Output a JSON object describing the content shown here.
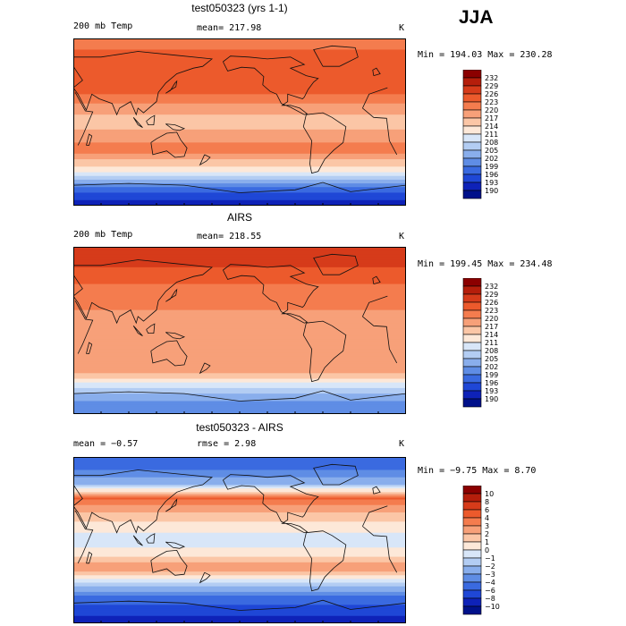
{
  "season": "JJA",
  "panels": [
    {
      "title": "test050323 (yrs 1-1)",
      "left_label": "200 mb Temp",
      "mid_label": "mean= 217.98",
      "unit": "K",
      "minmax": "Min = 194.03 Max = 230.28"
    },
    {
      "title": "AIRS",
      "left_label": "200 mb Temp",
      "mid_label": "mean= 218.55",
      "unit": "K",
      "minmax": "Min = 199.45 Max = 234.48"
    },
    {
      "title": "test050323 - AIRS",
      "left_label": "mean =  −0.57",
      "mid_label": "rmse =   2.98",
      "unit": "K",
      "minmax": "Min = −9.75 Max =   8.70"
    }
  ],
  "chart_data": [
    {
      "type": "heatmap",
      "title": "test050323 (yrs 1-1)",
      "variable": "200 mb Temp",
      "units": "K",
      "mean": 217.98,
      "min": 194.03,
      "max": 230.28,
      "levels": [
        232,
        229,
        226,
        223,
        220,
        217,
        214,
        211,
        208,
        205,
        202,
        199,
        196,
        193,
        190
      ],
      "colors": [
        "#8b0000",
        "#b51e0b",
        "#d63b1a",
        "#ec5a2c",
        "#f47c4e",
        "#f7a079",
        "#fbc6a6",
        "#fde8d8",
        "#d8e6f8",
        "#b3cdf3",
        "#89aeec",
        "#5f8de5",
        "#3a6ae0",
        "#1f47d6",
        "#0e22b8",
        "#00118a"
      ],
      "lat_profile": [
        {
          "lat": 90,
          "value": 220
        },
        {
          "lat": 75,
          "value": 224
        },
        {
          "lat": 60,
          "value": 226
        },
        {
          "lat": 45,
          "value": 225
        },
        {
          "lat": 30,
          "value": 223
        },
        {
          "lat": 15,
          "value": 218
        },
        {
          "lat": 0,
          "value": 216
        },
        {
          "lat": -15,
          "value": 218
        },
        {
          "lat": -30,
          "value": 222
        },
        {
          "lat": -45,
          "value": 215
        },
        {
          "lat": -55,
          "value": 210
        },
        {
          "lat": -65,
          "value": 202
        },
        {
          "lat": -75,
          "value": 196
        },
        {
          "lat": -90,
          "value": 191
        }
      ]
    },
    {
      "type": "heatmap",
      "title": "AIRS",
      "variable": "200 mb Temp",
      "units": "K",
      "mean": 218.55,
      "min": 199.45,
      "max": 234.48,
      "levels": [
        232,
        229,
        226,
        223,
        220,
        217,
        214,
        211,
        208,
        205,
        202,
        199,
        196,
        193,
        190
      ],
      "colors": [
        "#8b0000",
        "#b51e0b",
        "#d63b1a",
        "#ec5a2c",
        "#f47c4e",
        "#f7a079",
        "#fbc6a6",
        "#fde8d8",
        "#d8e6f8",
        "#b3cdf3",
        "#89aeec",
        "#5f8de5",
        "#3a6ae0",
        "#1f47d6",
        "#0e22b8",
        "#00118a"
      ],
      "lat_profile": [
        {
          "lat": 90,
          "value": 228
        },
        {
          "lat": 75,
          "value": 227
        },
        {
          "lat": 60,
          "value": 225
        },
        {
          "lat": 45,
          "value": 222
        },
        {
          "lat": 30,
          "value": 221
        },
        {
          "lat": 15,
          "value": 219
        },
        {
          "lat": 0,
          "value": 218
        },
        {
          "lat": -15,
          "value": 219
        },
        {
          "lat": -30,
          "value": 220
        },
        {
          "lat": -45,
          "value": 217
        },
        {
          "lat": -55,
          "value": 212
        },
        {
          "lat": -65,
          "value": 206
        },
        {
          "lat": -75,
          "value": 202
        },
        {
          "lat": -90,
          "value": 200
        }
      ]
    },
    {
      "type": "heatmap",
      "title": "test050323 - AIRS",
      "units": "K",
      "mean": -0.57,
      "rmse": 2.98,
      "min": -9.75,
      "max": 8.7,
      "levels": [
        10,
        8,
        6,
        4,
        3,
        2,
        1,
        0,
        -1,
        -2,
        -3,
        -4,
        -6,
        -8,
        -10
      ],
      "colors": [
        "#8b0000",
        "#b51e0b",
        "#d63b1a",
        "#ec5a2c",
        "#f47c4e",
        "#f7a079",
        "#fbc6a6",
        "#fde8d8",
        "#d8e6f8",
        "#b3cdf3",
        "#89aeec",
        "#5f8de5",
        "#3a6ae0",
        "#1f47d6",
        "#0e22b8",
        "#00118a"
      ],
      "lat_profile": [
        {
          "lat": 90,
          "value": -5
        },
        {
          "lat": 75,
          "value": -4
        },
        {
          "lat": 60,
          "value": -2
        },
        {
          "lat": 45,
          "value": 4
        },
        {
          "lat": 30,
          "value": 2
        },
        {
          "lat": 15,
          "value": 0.5
        },
        {
          "lat": 0,
          "value": -0.5
        },
        {
          "lat": -15,
          "value": 0.5
        },
        {
          "lat": -30,
          "value": 3
        },
        {
          "lat": -45,
          "value": -1
        },
        {
          "lat": -55,
          "value": -3
        },
        {
          "lat": -65,
          "value": -5
        },
        {
          "lat": -75,
          "value": -7
        },
        {
          "lat": -90,
          "value": -9
        }
      ]
    }
  ]
}
